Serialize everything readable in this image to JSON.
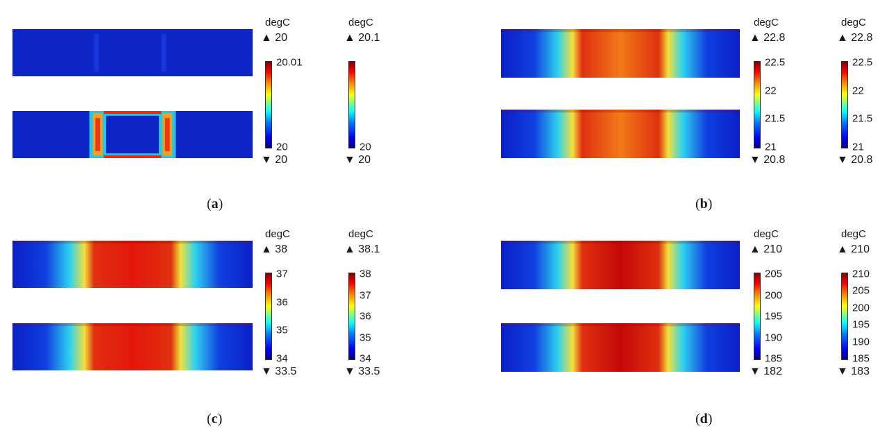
{
  "figure": {
    "panels": [
      {
        "label_letter": "a",
        "pattern": "frame",
        "colorbars": [
          {
            "unit": "degC",
            "max": "▲ 20",
            "min": "▼ 20",
            "ticks": [
              "20.01",
              "20"
            ]
          },
          {
            "unit": "degC",
            "max": "▲ 20.1",
            "min": "▼ 20",
            "ticks": [
              "20"
            ]
          }
        ]
      },
      {
        "label_letter": "b",
        "pattern": "band",
        "colorbars": [
          {
            "unit": "degC",
            "max": "▲ 22.8",
            "min": "▼ 20.8",
            "ticks": [
              "22.5",
              "22",
              "21.5",
              "21"
            ]
          },
          {
            "unit": "degC",
            "max": "▲ 22.8",
            "min": "▼ 20.8",
            "ticks": [
              "22.5",
              "22",
              "21.5",
              "21"
            ]
          }
        ]
      },
      {
        "label_letter": "c",
        "pattern": "band",
        "colorbars": [
          {
            "unit": "degC",
            "max": "▲ 38",
            "min": "▼ 33.5",
            "ticks": [
              "37",
              "36",
              "35",
              "34"
            ]
          },
          {
            "unit": "degC",
            "max": "▲ 38.1",
            "min": "▼ 33.5",
            "ticks": [
              "38",
              "37",
              "36",
              "35",
              "34"
            ]
          }
        ]
      },
      {
        "label_letter": "d",
        "pattern": "band",
        "colorbars": [
          {
            "unit": "degC",
            "max": "▲ 210",
            "min": "▼ 182",
            "ticks": [
              "205",
              "200",
              "195",
              "190",
              "185"
            ]
          },
          {
            "unit": "degC",
            "max": "▲ 210",
            "min": "▼ 183",
            "ticks": [
              "210",
              "205",
              "200",
              "195",
              "190",
              "185"
            ]
          }
        ]
      }
    ]
  }
}
